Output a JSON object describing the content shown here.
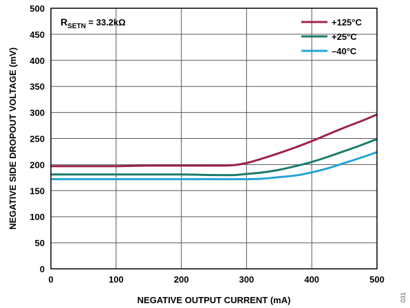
{
  "chart_data": {
    "type": "line",
    "xlabel": "NEGATIVE OUTPUT CURRENT (mA)",
    "ylabel": "NEGATIVE SIDE DROPOUT VOLTAGE (mV)",
    "xlim": [
      0,
      500
    ],
    "ylim": [
      0,
      500
    ],
    "x_ticks": [
      0,
      100,
      200,
      300,
      400,
      500
    ],
    "y_ticks": [
      0,
      50,
      100,
      150,
      200,
      250,
      300,
      350,
      400,
      450,
      500
    ],
    "grid": true,
    "legend_position": "top-right",
    "annotation": {
      "prefix": "R",
      "subscript": "SETN",
      "suffix": " = 33.2kΩ"
    },
    "series": [
      {
        "name": "+125°C",
        "color": "#9b2346",
        "x": [
          0,
          50,
          100,
          150,
          200,
          250,
          280,
          300,
          320,
          350,
          375,
          400,
          425,
          450,
          475,
          500
        ],
        "y": [
          197,
          197,
          197,
          198,
          198,
          198,
          199,
          203,
          210,
          222,
          233,
          245,
          258,
          271,
          283,
          296
        ]
      },
      {
        "name": "+25°C",
        "color": "#1d7a6b",
        "x": [
          0,
          50,
          100,
          150,
          200,
          250,
          280,
          300,
          325,
          350,
          375,
          400,
          425,
          450,
          475,
          500
        ],
        "y": [
          181,
          181,
          181,
          181,
          181,
          180,
          180,
          182,
          185,
          190,
          197,
          205,
          215,
          226,
          237,
          249
        ]
      },
      {
        "name": "–40°C",
        "color": "#23a4d6",
        "x": [
          0,
          50,
          100,
          150,
          200,
          250,
          300,
          325,
          350,
          375,
          400,
          425,
          450,
          475,
          500
        ],
        "y": [
          172,
          172,
          172,
          172,
          172,
          172,
          172,
          173,
          176,
          179,
          185,
          193,
          203,
          213,
          224
        ]
      }
    ]
  },
  "figure_number": "031"
}
